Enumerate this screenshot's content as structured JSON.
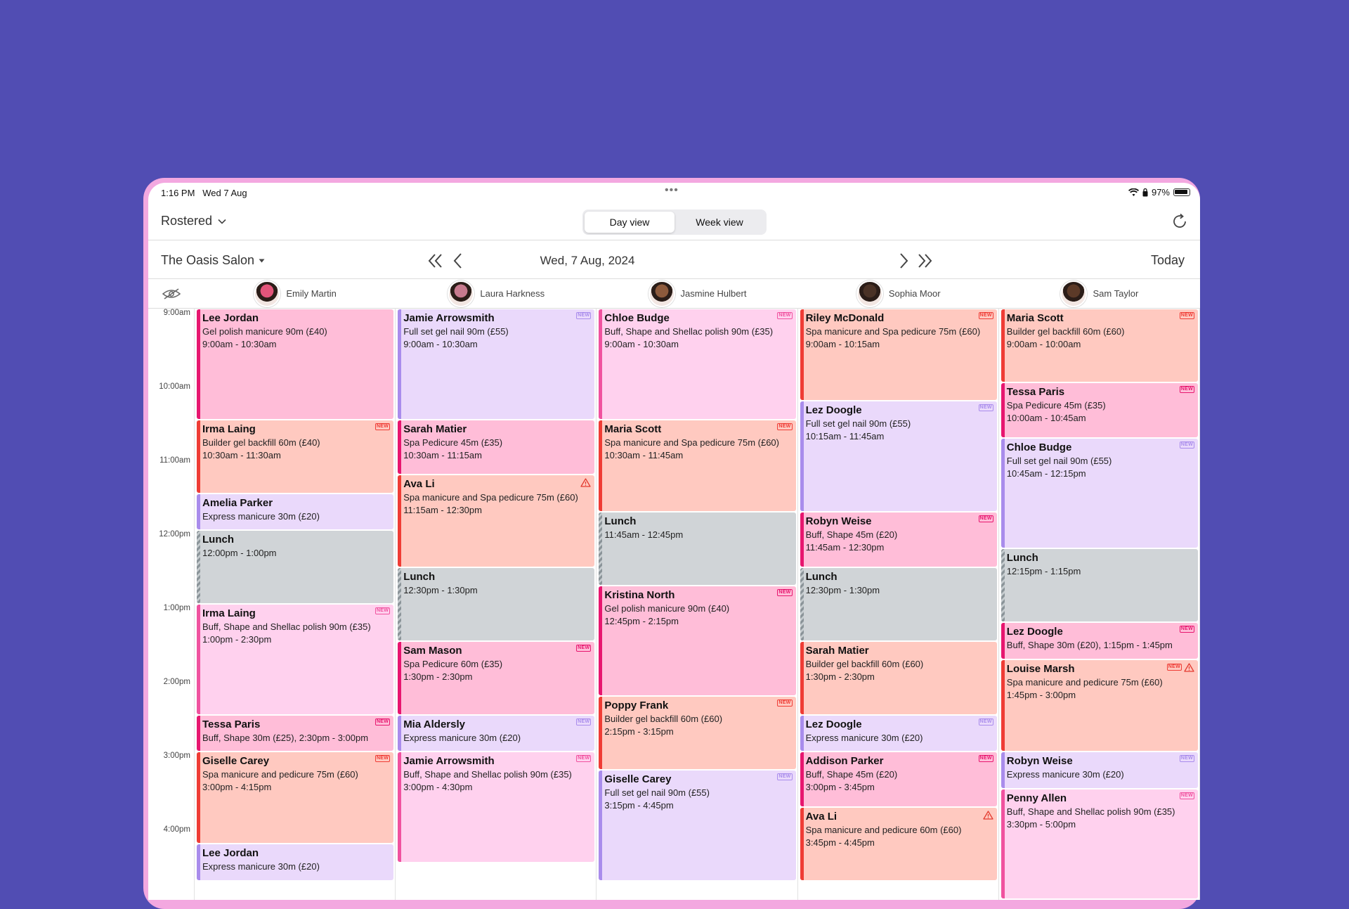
{
  "status": {
    "time": "1:16 PM",
    "date": "Wed 7 Aug",
    "battery": "97%",
    "dots": "•••"
  },
  "toolbar": {
    "roster_label": "Rostered",
    "views": [
      "Day view",
      "Week view"
    ],
    "active_view": "Day view",
    "refresh_icon": "refresh-icon"
  },
  "nav": {
    "salon": "The Oasis Salon",
    "date": "Wed, 7 Aug, 2024",
    "today": "Today"
  },
  "staff": [
    "Emily Martin",
    "Laura Harkness",
    "Jasmine Hulbert",
    "Sophia Moor",
    "Sam Taylor"
  ],
  "times": [
    "9:00am",
    "10:00am",
    "11:00am",
    "12:00pm",
    "1:00pm",
    "2:00pm",
    "3:00pm",
    "4:00pm"
  ],
  "colors": {
    "pink": {
      "bg": "#ffbdd8",
      "bar": "#e7166f"
    },
    "lavender": {
      "bg": "#ead9fb",
      "bar": "#a98cec"
    },
    "peach": {
      "bg": "#ffc9c0",
      "bar": "#ef3c35"
    },
    "lightpink": {
      "bg": "#ffd1ee",
      "bar": "#f0529f"
    },
    "gray": {
      "bg": "#d0d4d7",
      "bar": "#8b9499"
    }
  },
  "appointments": [
    [
      {
        "name": "Lee Jordan",
        "lines": [
          "Gel polish manicure 90m (£40)",
          "9:00am - 10:30am"
        ],
        "s": 0,
        "e": 90,
        "c": "pink",
        "badges": []
      },
      {
        "name": "Irma Laing",
        "lines": [
          "Builder gel backfill 60m (£40)",
          "10:30am - 11:30am"
        ],
        "s": 90,
        "e": 150,
        "c": "peach",
        "badges": [
          "new"
        ]
      },
      {
        "name": "Amelia Parker",
        "lines": [
          "Express manicure 30m (£20)"
        ],
        "s": 150,
        "e": 180,
        "c": "lavender",
        "badges": []
      },
      {
        "name": "Lunch",
        "lines": [
          "12:00pm - 1:00pm"
        ],
        "s": 180,
        "e": 240,
        "c": "gray",
        "badges": []
      },
      {
        "name": "Irma Laing",
        "lines": [
          "Buff, Shape and Shellac polish 90m (£35)",
          "1:00pm - 2:30pm"
        ],
        "s": 240,
        "e": 330,
        "c": "lightpink",
        "badges": [
          "new"
        ]
      },
      {
        "name": "Tessa Paris",
        "lines": [
          "Buff, Shape 30m (£25), 2:30pm - 3:00pm"
        ],
        "s": 330,
        "e": 360,
        "c": "pink",
        "badges": [
          "new"
        ]
      },
      {
        "name": "Giselle Carey",
        "lines": [
          "Spa manicure and pedicure 75m (£60)",
          "3:00pm - 4:15pm"
        ],
        "s": 360,
        "e": 435,
        "c": "peach",
        "badges": [
          "new"
        ]
      },
      {
        "name": "Lee Jordan",
        "lines": [
          "Express manicure 30m (£20)"
        ],
        "s": 435,
        "e": 465,
        "c": "lavender",
        "badges": []
      }
    ],
    [
      {
        "name": "Jamie Arrowsmith",
        "lines": [
          "Full set gel nail 90m (£55)",
          "9:00am - 10:30am"
        ],
        "s": 0,
        "e": 90,
        "c": "lavender",
        "badges": [
          "new"
        ]
      },
      {
        "name": "Sarah Matier",
        "lines": [
          "Spa Pedicure 45m (£35)",
          "10:30am - 11:15am"
        ],
        "s": 90,
        "e": 135,
        "c": "pink",
        "badges": []
      },
      {
        "name": "Ava Li",
        "lines": [
          "Spa manicure and Spa pedicure 75m (£60)",
          "11:15am - 12:30pm"
        ],
        "s": 135,
        "e": 210,
        "c": "peach",
        "badges": [
          "warn"
        ]
      },
      {
        "name": "Lunch",
        "lines": [
          "12:30pm - 1:30pm"
        ],
        "s": 210,
        "e": 270,
        "c": "gray",
        "badges": []
      },
      {
        "name": "Sam Mason",
        "lines": [
          "Spa Pedicure 60m (£35)",
          "1:30pm - 2:30pm"
        ],
        "s": 270,
        "e": 330,
        "c": "pink",
        "badges": [
          "new"
        ]
      },
      {
        "name": "Mia Aldersly",
        "lines": [
          "Express manicure 30m (£20)"
        ],
        "s": 330,
        "e": 360,
        "c": "lavender",
        "badges": [
          "new"
        ]
      },
      {
        "name": "Jamie Arrowsmith",
        "lines": [
          "Buff, Shape and Shellac polish 90m (£35)",
          "3:00pm - 4:30pm"
        ],
        "s": 360,
        "e": 450,
        "c": "lightpink",
        "badges": [
          "new"
        ]
      }
    ],
    [
      {
        "name": "Chloe Budge",
        "lines": [
          "Buff, Shape and Shellac polish 90m (£35)",
          "9:00am - 10:30am"
        ],
        "s": 0,
        "e": 90,
        "c": "lightpink",
        "badges": [
          "new"
        ]
      },
      {
        "name": "Maria Scott",
        "lines": [
          "Spa manicure and Spa pedicure 75m (£60)",
          "10:30am - 11:45am"
        ],
        "s": 90,
        "e": 165,
        "c": "peach",
        "badges": [
          "new"
        ]
      },
      {
        "name": "Lunch",
        "lines": [
          "11:45am - 12:45pm"
        ],
        "s": 165,
        "e": 225,
        "c": "gray",
        "badges": []
      },
      {
        "name": "Kristina North",
        "lines": [
          "Gel polish manicure 90m (£40)",
          "12:45pm - 2:15pm"
        ],
        "s": 225,
        "e": 315,
        "c": "pink",
        "badges": [
          "new"
        ]
      },
      {
        "name": "Poppy Frank",
        "lines": [
          "Builder gel backfill 60m (£60)",
          "2:15pm - 3:15pm"
        ],
        "s": 315,
        "e": 375,
        "c": "peach",
        "badges": [
          "new"
        ]
      },
      {
        "name": "Giselle Carey",
        "lines": [
          "Full set gel nail 90m (£55)",
          "3:15pm - 4:45pm"
        ],
        "s": 375,
        "e": 465,
        "c": "lavender",
        "badges": [
          "new"
        ]
      }
    ],
    [
      {
        "name": "Riley McDonald",
        "lines": [
          "Spa manicure and Spa pedicure 75m (£60)",
          "9:00am - 10:15am"
        ],
        "s": 0,
        "e": 75,
        "c": "peach",
        "badges": [
          "new"
        ]
      },
      {
        "name": "Lez Doogle",
        "lines": [
          "Full set gel nail 90m (£55)",
          "10:15am - 11:45am"
        ],
        "s": 75,
        "e": 165,
        "c": "lavender",
        "badges": [
          "new"
        ]
      },
      {
        "name": "Robyn Weise",
        "lines": [
          "Buff, Shape 45m (£20)",
          "11:45am - 12:30pm"
        ],
        "s": 165,
        "e": 210,
        "c": "pink",
        "badges": [
          "new"
        ]
      },
      {
        "name": "Lunch",
        "lines": [
          "12:30pm - 1:30pm"
        ],
        "s": 210,
        "e": 270,
        "c": "gray",
        "badges": []
      },
      {
        "name": "Sarah Matier",
        "lines": [
          "Builder gel backfill 60m (£60)",
          "1:30pm - 2:30pm"
        ],
        "s": 270,
        "e": 330,
        "c": "peach",
        "badges": []
      },
      {
        "name": "Lez Doogle",
        "lines": [
          "Express manicure 30m (£20)"
        ],
        "s": 330,
        "e": 360,
        "c": "lavender",
        "badges": [
          "new"
        ]
      },
      {
        "name": "Addison Parker",
        "lines": [
          "Buff, Shape 45m (£20)",
          "3:00pm - 3:45pm"
        ],
        "s": 360,
        "e": 405,
        "c": "pink",
        "badges": [
          "new"
        ]
      },
      {
        "name": "Ava Li",
        "lines": [
          "Spa manicure and pedicure 60m (£60)",
          "3:45pm - 4:45pm"
        ],
        "s": 405,
        "e": 465,
        "c": "peach",
        "badges": [
          "warn"
        ]
      }
    ],
    [
      {
        "name": "Maria Scott",
        "lines": [
          "Builder gel backfill 60m (£60)",
          "9:00am - 10:00am"
        ],
        "s": 0,
        "e": 60,
        "c": "peach",
        "badges": [
          "new"
        ]
      },
      {
        "name": "Tessa Paris",
        "lines": [
          "Spa Pedicure 45m (£35)",
          "10:00am - 10:45am"
        ],
        "s": 60,
        "e": 105,
        "c": "pink",
        "badges": [
          "new"
        ]
      },
      {
        "name": "Chloe Budge",
        "lines": [
          "Full set gel nail 90m (£55)",
          "10:45am - 12:15pm"
        ],
        "s": 105,
        "e": 195,
        "c": "lavender",
        "badges": [
          "new"
        ]
      },
      {
        "name": "Lunch",
        "lines": [
          "12:15pm - 1:15pm"
        ],
        "s": 195,
        "e": 255,
        "c": "gray",
        "badges": []
      },
      {
        "name": "Lez Doogle",
        "lines": [
          "Buff, Shape 30m (£20), 1:15pm - 1:45pm"
        ],
        "s": 255,
        "e": 285,
        "c": "pink",
        "badges": [
          "new"
        ]
      },
      {
        "name": "Louise Marsh",
        "lines": [
          "Spa manicure and pedicure 75m (£60)",
          "1:45pm - 3:00pm"
        ],
        "s": 285,
        "e": 360,
        "c": "peach",
        "badges": [
          "new",
          "warn"
        ]
      },
      {
        "name": "Robyn Weise",
        "lines": [
          "Express manicure 30m (£20)"
        ],
        "s": 360,
        "e": 390,
        "c": "lavender",
        "badges": [
          "new"
        ]
      },
      {
        "name": "Penny Allen",
        "lines": [
          "Buff, Shape and Shellac polish 90m (£35)",
          "3:30pm - 5:00pm"
        ],
        "s": 390,
        "e": 480,
        "c": "lightpink",
        "badges": [
          "new"
        ]
      }
    ]
  ]
}
